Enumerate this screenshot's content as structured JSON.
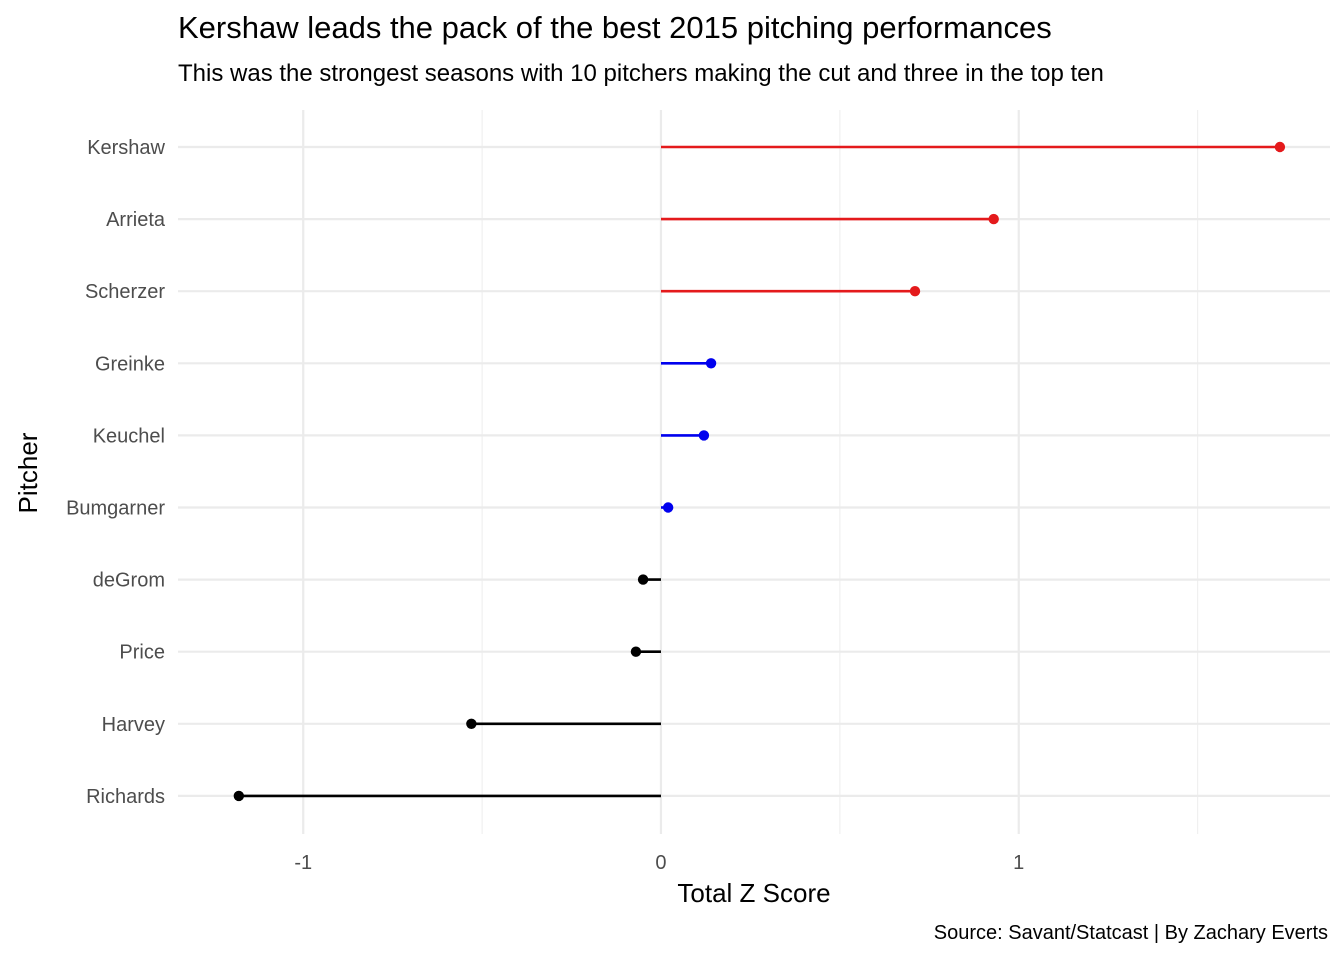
{
  "title": "Kershaw leads the pack of the best 2015 pitching performances",
  "subtitle": "This was the strongest seasons with 10 pitchers making the cut and three in the top ten",
  "caption": "Source: Savant/Statcast | By Zachary Everts",
  "chart_data": {
    "type": "lollipop",
    "xlabel": "Total Z Score",
    "ylabel": "Pitcher",
    "xlim": [
      -1.35,
      1.87
    ],
    "xticks": [
      -1,
      0,
      1
    ],
    "grid": true,
    "legend": "none",
    "points": [
      {
        "name": "Kershaw",
        "value": 1.73,
        "color": "#e41a1c"
      },
      {
        "name": "Arrieta",
        "value": 0.93,
        "color": "#e41a1c"
      },
      {
        "name": "Scherzer",
        "value": 0.71,
        "color": "#e41a1c"
      },
      {
        "name": "Greinke",
        "value": 0.14,
        "color": "#0000ee"
      },
      {
        "name": "Keuchel",
        "value": 0.12,
        "color": "#0000ee"
      },
      {
        "name": "Bumgarner",
        "value": 0.02,
        "color": "#0000ee"
      },
      {
        "name": "deGrom",
        "value": -0.05,
        "color": "#000000"
      },
      {
        "name": "Price",
        "value": -0.07,
        "color": "#000000"
      },
      {
        "name": "Harvey",
        "value": -0.53,
        "color": "#000000"
      },
      {
        "name": "Richards",
        "value": -1.18,
        "color": "#000000"
      }
    ]
  }
}
